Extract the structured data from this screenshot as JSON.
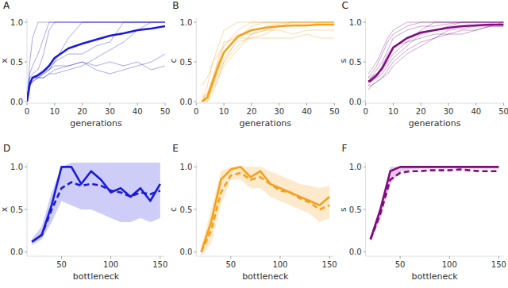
{
  "chart_data": [
    {
      "type": "line",
      "panel": "A",
      "x_label": "generations",
      "y_label": "x",
      "color": "#1a1adb",
      "x": [
        0,
        1,
        2,
        4,
        6,
        8,
        10,
        15,
        20,
        25,
        30,
        35,
        40,
        45,
        50
      ],
      "xlim": [
        0,
        50
      ],
      "ylim": [
        -0.02,
        1.05
      ],
      "xticks": [
        0,
        10,
        20,
        30,
        40,
        50
      ],
      "yticks": [
        {
          "value": 0,
          "label": "0.0"
        },
        {
          "value": 0.5,
          "label": "0.5"
        },
        {
          "value": 1,
          "label": "1.0"
        }
      ],
      "runs": [
        [
          0,
          0.5,
          0.8,
          1,
          1,
          1,
          1,
          1,
          1,
          1,
          1,
          1,
          1,
          1,
          1
        ],
        [
          0,
          0.3,
          0.35,
          0.4,
          0.6,
          0.9,
          1,
          1,
          1,
          1,
          1,
          1,
          1,
          1,
          1
        ],
        [
          0,
          0.2,
          0.3,
          0.3,
          0.35,
          0.4,
          0.5,
          0.8,
          1,
          1,
          1,
          1,
          1,
          1,
          1
        ],
        [
          0,
          0.25,
          0.3,
          0.3,
          0.3,
          0.35,
          0.4,
          0.45,
          0.5,
          0.45,
          0.5,
          0.45,
          0.5,
          0.4,
          0.45
        ],
        [
          0,
          0.2,
          0.25,
          0.3,
          0.35,
          0.4,
          0.5,
          0.6,
          0.6,
          0.7,
          0.75,
          1,
          1,
          1,
          1
        ],
        [
          0,
          0.3,
          0.3,
          0.35,
          0.4,
          0.4,
          0.45,
          0.45,
          0.5,
          0.4,
          0.35,
          0.4,
          0.45,
          0.5,
          0.6
        ],
        [
          0,
          0.35,
          0.45,
          0.6,
          0.8,
          1,
          1,
          1,
          1,
          1,
          1,
          1,
          1,
          1,
          1
        ],
        [
          0,
          0.2,
          0.25,
          0.3,
          0.3,
          0.35,
          0.35,
          0.4,
          0.45,
          0.55,
          0.65,
          0.75,
          0.9,
          1,
          1
        ]
      ],
      "series": [
        {
          "values": [
            0,
            0.22,
            0.3,
            0.33,
            0.38,
            0.45,
            0.55,
            0.67,
            0.73,
            0.78,
            0.83,
            0.86,
            0.9,
            0.92,
            0.95
          ],
          "line_style": "solid"
        }
      ]
    },
    {
      "type": "line",
      "panel": "B",
      "x_label": "generations",
      "y_label": "c",
      "color": "#f5a01a",
      "x": [
        0,
        1,
        2,
        4,
        6,
        8,
        10,
        15,
        20,
        25,
        30,
        35,
        40,
        45,
        50
      ],
      "xlim": [
        0,
        50
      ],
      "ylim": [
        -0.02,
        1.05
      ],
      "xticks": [
        0,
        10,
        20,
        30,
        40,
        50
      ],
      "yticks": [
        {
          "value": 0,
          "label": "0.0"
        },
        {
          "value": 0.5,
          "label": "0.5"
        },
        {
          "value": 1,
          "label": "1.0"
        }
      ],
      "runs": [
        [
          null,
          null,
          0,
          0.2,
          0.5,
          0.7,
          0.9,
          1,
          1,
          1,
          1,
          1,
          1,
          1,
          1
        ],
        [
          null,
          null,
          0.1,
          0,
          0.1,
          0.3,
          0.5,
          0.8,
          0.95,
          1,
          1,
          1,
          1,
          1,
          1
        ],
        [
          null,
          null,
          0,
          0.1,
          0.3,
          0.5,
          0.7,
          0.85,
          0.85,
          0.9,
          0.9,
          0.85,
          0.9,
          0.9,
          0.9
        ],
        [
          null,
          null,
          0,
          0,
          0.2,
          0.4,
          0.55,
          0.75,
          0.8,
          0.85,
          0.95,
          1,
          1,
          1,
          1
        ],
        [
          null,
          null,
          0.2,
          0.3,
          0.5,
          0.6,
          0.7,
          0.9,
          1,
          1,
          1,
          1,
          1,
          1,
          1
        ],
        [
          null,
          null,
          0,
          0.1,
          0.2,
          0.35,
          0.5,
          0.7,
          0.85,
          0.9,
          0.95,
          0.95,
          0.95,
          1,
          1
        ],
        [
          null,
          null,
          0.05,
          0.1,
          0.3,
          0.55,
          0.75,
          0.8,
          0.8,
          0.8,
          0.8,
          0.8,
          0.85,
          0.8,
          0.8
        ],
        [
          null,
          null,
          0,
          0.05,
          0.15,
          0.3,
          0.45,
          0.65,
          0.85,
          0.95,
          0.98,
          1,
          1,
          1,
          1
        ]
      ],
      "series": [
        {
          "values": [
            null,
            null,
            0,
            0.05,
            0.25,
            0.45,
            0.62,
            0.82,
            0.9,
            0.93,
            0.95,
            0.96,
            0.96,
            0.97,
            0.97
          ],
          "line_style": "solid"
        }
      ]
    },
    {
      "type": "line",
      "panel": "C",
      "x_label": "generations",
      "y_label": "s",
      "color": "#820a82",
      "x": [
        0,
        1,
        2,
        4,
        6,
        8,
        10,
        15,
        20,
        25,
        30,
        35,
        40,
        45,
        50
      ],
      "xlim": [
        0,
        50
      ],
      "ylim": [
        -0.02,
        1.05
      ],
      "xticks": [
        0,
        10,
        20,
        30,
        40,
        50
      ],
      "yticks": [
        {
          "value": 0,
          "label": "0.0"
        },
        {
          "value": 0.5,
          "label": "0.5"
        },
        {
          "value": 1,
          "label": "1.0"
        }
      ],
      "runs": [
        [
          null,
          0.3,
          0.35,
          0.45,
          0.6,
          0.75,
          0.85,
          0.95,
          1,
          1,
          1,
          1,
          1,
          1,
          1
        ],
        [
          null,
          0.2,
          0.25,
          0.3,
          0.35,
          0.45,
          0.55,
          0.7,
          0.85,
          0.9,
          0.95,
          1,
          1,
          1,
          1
        ],
        [
          null,
          0.25,
          0.3,
          0.4,
          0.5,
          0.65,
          0.8,
          0.9,
          0.95,
          0.95,
          0.98,
          1,
          1,
          1,
          1
        ],
        [
          null,
          0.15,
          0.2,
          0.25,
          0.3,
          0.4,
          0.5,
          0.65,
          0.75,
          0.8,
          0.85,
          0.85,
          0.9,
          0.95,
          0.95
        ],
        [
          null,
          0.35,
          0.4,
          0.5,
          0.65,
          0.8,
          0.9,
          1,
          1,
          1,
          1,
          1,
          1,
          1,
          1
        ],
        [
          null,
          0.2,
          0.2,
          0.25,
          0.3,
          0.35,
          0.45,
          0.6,
          0.7,
          0.8,
          0.9,
          0.92,
          0.95,
          0.95,
          1
        ],
        [
          null,
          0.3,
          0.3,
          0.35,
          0.45,
          0.6,
          0.7,
          0.75,
          0.8,
          0.85,
          0.85,
          0.9,
          0.9,
          0.95,
          0.95
        ],
        [
          null,
          0.25,
          0.3,
          0.35,
          0.4,
          0.5,
          0.6,
          0.75,
          0.9,
          1,
          1,
          1,
          1,
          1,
          1
        ]
      ],
      "series": [
        {
          "values": [
            null,
            0.25,
            0.27,
            0.33,
            0.42,
            0.55,
            0.68,
            0.8,
            0.87,
            0.9,
            0.93,
            0.95,
            0.96,
            0.97,
            0.97
          ],
          "line_style": "solid"
        }
      ]
    },
    {
      "type": "line",
      "panel": "D",
      "x_label": "bottleneck",
      "y_label": "x",
      "color": "#1a1adb",
      "x": [
        20,
        30,
        40,
        50,
        60,
        70,
        80,
        90,
        100,
        110,
        120,
        130,
        140,
        150
      ],
      "xlim": [
        15,
        155
      ],
      "ylim": [
        -0.05,
        1.05
      ],
      "xticks": [
        50,
        100,
        150
      ],
      "yticks": [
        {
          "value": 0,
          "label": "0.0"
        },
        {
          "value": 0.5,
          "label": "0.5"
        },
        {
          "value": 1,
          "label": "1.0"
        }
      ],
      "band": {
        "lower": [
          0.08,
          0.15,
          0.35,
          0.6,
          0.55,
          0.5,
          0.5,
          0.45,
          0.4,
          0.35,
          0.35,
          0.4,
          0.35,
          0.4
        ],
        "upper": [
          0.15,
          0.3,
          0.7,
          1.0,
          1.05,
          1.05,
          1.05,
          1.05,
          1.05,
          1.05,
          1.05,
          1.05,
          1.05,
          1.05
        ]
      },
      "series": [
        {
          "values": [
            0.12,
            0.2,
            0.55,
            1.0,
            1.0,
            0.8,
            0.95,
            0.85,
            0.7,
            0.75,
            0.65,
            0.75,
            0.6,
            0.8
          ],
          "line_style": "solid"
        },
        {
          "values": [
            0.12,
            0.2,
            0.5,
            0.75,
            0.82,
            0.78,
            0.8,
            0.78,
            0.72,
            0.7,
            0.65,
            0.7,
            0.68,
            0.72
          ],
          "line_style": "dashed"
        }
      ]
    },
    {
      "type": "line",
      "panel": "E",
      "x_label": "bottleneck",
      "y_label": "c",
      "color": "#f5a01a",
      "x": [
        20,
        30,
        40,
        50,
        60,
        70,
        80,
        90,
        100,
        110,
        120,
        130,
        140,
        150
      ],
      "xlim": [
        15,
        155
      ],
      "ylim": [
        -0.05,
        1.05
      ],
      "xticks": [
        50,
        100,
        150
      ],
      "yticks": [
        {
          "value": 0,
          "label": "0.0"
        },
        {
          "value": 0.5,
          "label": "0.5"
        },
        {
          "value": 1,
          "label": "1.0"
        }
      ],
      "band": {
        "lower": [
          -0.05,
          0.1,
          0.55,
          0.85,
          0.85,
          0.75,
          0.75,
          0.65,
          0.6,
          0.55,
          0.5,
          0.45,
          0.35,
          0.4
        ],
        "upper": [
          0.08,
          0.5,
          0.95,
          1.0,
          1.0,
          1.0,
          1.0,
          0.95,
          0.9,
          0.85,
          0.8,
          0.78,
          0.75,
          0.78
        ]
      },
      "series": [
        {
          "values": [
            0.0,
            0.35,
            0.85,
            0.97,
            1.0,
            0.88,
            0.95,
            0.8,
            0.75,
            0.7,
            0.65,
            0.6,
            0.55,
            0.65
          ],
          "line_style": "solid"
        },
        {
          "values": [
            0.0,
            0.25,
            0.7,
            0.9,
            0.93,
            0.85,
            0.88,
            0.8,
            0.72,
            0.7,
            0.63,
            0.58,
            0.5,
            0.55
          ],
          "line_style": "dashed"
        }
      ]
    },
    {
      "type": "line",
      "panel": "F",
      "x_label": "bottleneck",
      "y_label": "s",
      "color": "#820a82",
      "x": [
        20,
        30,
        40,
        50,
        60,
        70,
        80,
        90,
        100,
        110,
        120,
        130,
        140,
        150
      ],
      "xlim": [
        15,
        155
      ],
      "ylim": [
        -0.05,
        1.05
      ],
      "xticks": [
        50,
        100,
        150
      ],
      "yticks": [
        {
          "value": 0,
          "label": "0.0"
        },
        {
          "value": 0.5,
          "label": "0.5"
        },
        {
          "value": 1,
          "label": "1.0"
        }
      ],
      "band": {
        "lower": [
          0.12,
          0.4,
          0.8,
          0.95,
          0.97,
          0.98,
          0.98,
          0.98,
          0.98,
          0.98,
          0.98,
          0.98,
          0.98,
          0.98
        ],
        "upper": [
          0.18,
          0.55,
          1.0,
          1.0,
          1.0,
          1.0,
          1.0,
          1.0,
          1.0,
          1.0,
          1.0,
          1.0,
          1.0,
          1.0
        ]
      },
      "series": [
        {
          "values": [
            0.15,
            0.5,
            0.95,
            1.0,
            1.0,
            1.0,
            1.0,
            1.0,
            1.0,
            1.0,
            1.0,
            1.0,
            1.0,
            1.0
          ],
          "line_style": "solid"
        },
        {
          "values": [
            0.15,
            0.45,
            0.85,
            0.93,
            0.95,
            0.95,
            0.96,
            0.96,
            0.96,
            0.97,
            0.96,
            0.95,
            0.95,
            0.95
          ],
          "line_style": "dashed"
        }
      ]
    }
  ]
}
